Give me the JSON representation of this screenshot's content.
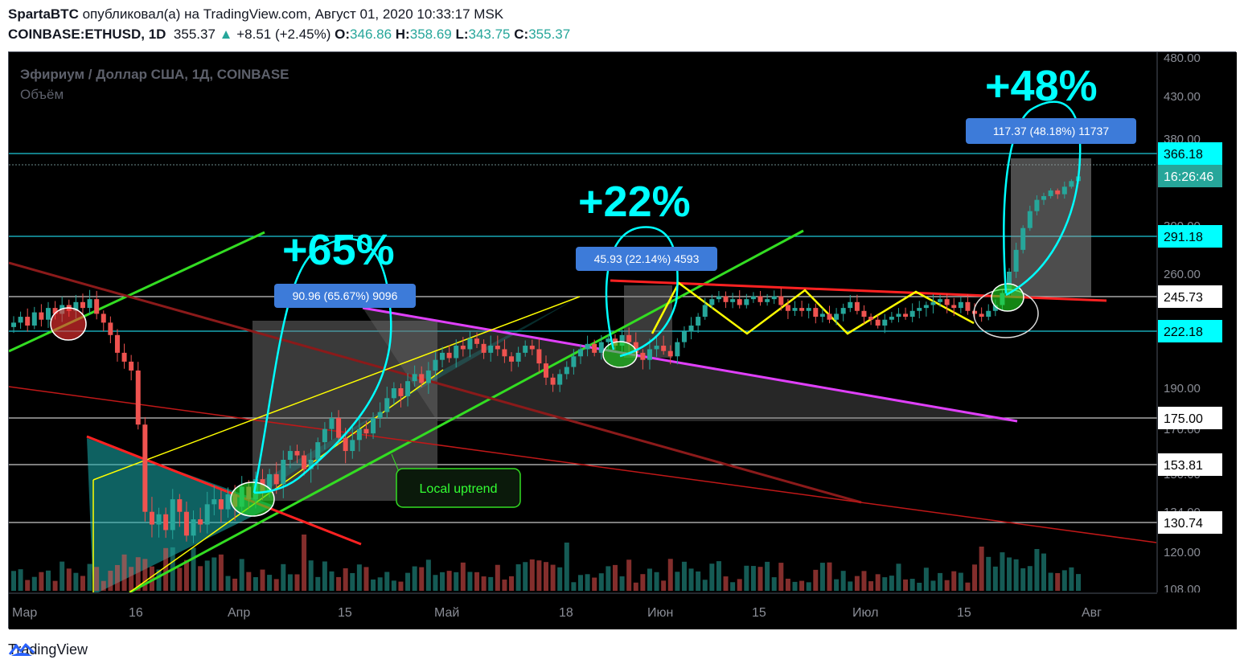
{
  "header": {
    "author": "SpartaBTC",
    "published_text": "опубликовал(а) на TradingView.com, Август 01, 2020 10:33:17 MSK",
    "symbol": "COINBASE:ETHUSD, 1D",
    "price": "355.37",
    "change": "+8.51 (+2.45%)",
    "o_label": "O:",
    "o": "346.86",
    "h_label": "H:",
    "h": "358.69",
    "l_label": "L:",
    "l": "343.75",
    "c_label": "C:",
    "c": "355.37"
  },
  "legend": {
    "title": "Эфириум / Доллар США, 1Д, COINBASE",
    "volume": "Объём"
  },
  "footer": {
    "brand": "TradingView"
  },
  "colors": {
    "up": "#26a69a",
    "down": "#ef5350",
    "cyan": "#00ffff",
    "magenta": "#e040fb",
    "yellow": "#ffff00",
    "green": "#33dd22",
    "red": "#ff2222",
    "label_blue": "#3d7bd9"
  },
  "chart_data": {
    "type": "candlestick",
    "ylim": [
      108,
      480
    ],
    "y_ticks": [
      "480.00",
      "430.00",
      "380.00",
      "300.00",
      "260.00",
      "190.00",
      "170.00",
      "150.00",
      "134.00",
      "120.00",
      "108.00"
    ],
    "x_ticks": [
      "Мар",
      "16",
      "Апр",
      "15",
      "Май",
      "18",
      "Июн",
      "15",
      "Июл",
      "15",
      "Авг"
    ],
    "price_levels": [
      {
        "label": "366.18",
        "value": 366.18,
        "style": "cyan-line"
      },
      {
        "label": "16:26:46",
        "value": 355.37,
        "style": "current"
      },
      {
        "label": "291.18",
        "value": 291.18,
        "style": "cyan-line"
      },
      {
        "label": "245.73",
        "value": 245.73,
        "style": "white-line"
      },
      {
        "label": "222.18",
        "value": 222.18,
        "style": "cyan-line"
      },
      {
        "label": "175.00",
        "value": 175.0,
        "style": "white-line"
      },
      {
        "label": "153.81",
        "value": 153.81,
        "style": "white-line"
      },
      {
        "label": "130.74",
        "value": 130.74,
        "style": "white-line"
      }
    ],
    "annotations": {
      "pct1": "+65%",
      "pct2": "+22%",
      "pct3": "+48%",
      "box1": "90.96 (65.67%) 9096",
      "box2": "45.93 (22.14%) 4593",
      "box3": "117.37 (48.18%) 11737",
      "uptrend": "Local uptrend"
    },
    "series": [
      {
        "name": "ETHUSD",
        "values": [
          228,
          232,
          226,
          235,
          230,
          238,
          234,
          240,
          236,
          242,
          238,
          244,
          234,
          228,
          220,
          210,
          205,
          200,
          172,
          135,
          130,
          134,
          128,
          140,
          135,
          126,
          132,
          130,
          138,
          140,
          136,
          142,
          137,
          145,
          140,
          148,
          143,
          150,
          146,
          156,
          160,
          158,
          152,
          156,
          164,
          170,
          175,
          166,
          160,
          165,
          170,
          168,
          175,
          178,
          185,
          190,
          186,
          194,
          198,
          193,
          200,
          206,
          210,
          207,
          214,
          212,
          218,
          215,
          210,
          214,
          212,
          208,
          205,
          210,
          214,
          212,
          204,
          196,
          192,
          198,
          202,
          208,
          212,
          215,
          210,
          216,
          218,
          214,
          220,
          216,
          210,
          206,
          212,
          214,
          211,
          208,
          216,
          222,
          226,
          232,
          240,
          244,
          246,
          242,
          244,
          240,
          244,
          246,
          242,
          244,
          246,
          240,
          236,
          238,
          236,
          238,
          232,
          234,
          230,
          234,
          238,
          242,
          236,
          232,
          230,
          226,
          230,
          232,
          234,
          232,
          236,
          238,
          240,
          242,
          244,
          240,
          238,
          242,
          236,
          234,
          232,
          236,
          240,
          248,
          262,
          280,
          300,
          318,
          330,
          334,
          340,
          336,
          344,
          350,
          355
        ]
      }
    ]
  }
}
